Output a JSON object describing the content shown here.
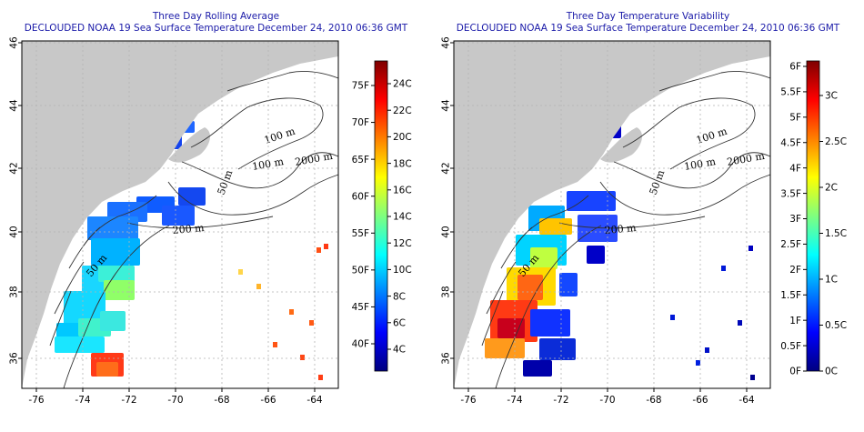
{
  "maps": [
    {
      "id": "rolling-average",
      "title_line1": "Three Day Rolling Average",
      "title_line2": "DECLOUDED NOAA 19 Sea Surface Temperature December 24, 2010 06:36 GMT",
      "x_ticks": [
        "-76",
        "-74",
        "-72",
        "-70",
        "-68",
        "-66",
        "-64"
      ],
      "y_ticks": [
        "36",
        "38",
        "40",
        "42",
        "44",
        "46"
      ],
      "colorbar_left_labels": [
        "75F",
        "70F",
        "65F",
        "60F",
        "55F",
        "50F",
        "45F",
        "40F"
      ],
      "colorbar_right_labels": [
        "24C",
        "22C",
        "20C",
        "18C",
        "16C",
        "14C",
        "12C",
        "10C",
        "8C",
        "6C",
        "4C"
      ],
      "contour_labels": [
        "100 m",
        "100 m",
        "2000 m",
        "50 m",
        "200 m",
        "50 m"
      ]
    },
    {
      "id": "temperature-variability",
      "title_line1": "Three Day Temperature Variability",
      "title_line2": "DECLOUDED NOAA 19 Sea Surface Temperature December 24, 2010 06:36 GMT",
      "x_ticks": [
        "-76",
        "-74",
        "-72",
        "-70",
        "-68",
        "-66",
        "-64"
      ],
      "y_ticks": [
        "36",
        "38",
        "40",
        "42",
        "44",
        "46"
      ],
      "colorbar_left_labels": [
        "6F",
        "5.5F",
        "5F",
        "4.5F",
        "4F",
        "3.5F",
        "3F",
        "2.5F",
        "2F",
        "1.5F",
        "1F",
        "0.5F",
        "0F"
      ],
      "colorbar_right_labels": [
        "3C",
        "2.5C",
        "2C",
        "1.5C",
        "1C",
        "0.5C",
        "0C"
      ],
      "contour_labels": [
        "100 m",
        "100 m",
        "2000 m",
        "50 m",
        "200 m",
        "50 m"
      ]
    }
  ],
  "colors": {
    "title": "#1a1aa8",
    "land": "#c8c8c8",
    "ocean": "#ffffff",
    "contour": "#333333",
    "grid": "#b4b4b4"
  },
  "colormap": [
    "#00007f",
    "#0000ff",
    "#007fff",
    "#00ffff",
    "#7fff7f",
    "#ffff00",
    "#ff7f00",
    "#ff0000",
    "#7f0000"
  ]
}
